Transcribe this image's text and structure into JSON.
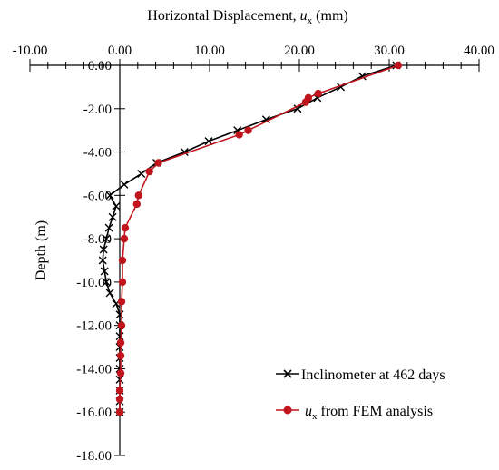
{
  "chart_data": {
    "type": "line",
    "title": "",
    "xlabel_prefix": "Horizontal Displacement, ",
    "xlabel_var": "u",
    "xlabel_sub": "x",
    "xlabel_unit": " (mm)",
    "ylabel": "Depth (m)",
    "xlim": [
      -10,
      40
    ],
    "ylim": [
      -18,
      0
    ],
    "x_ticks": [
      -10,
      0,
      10,
      20,
      30,
      40
    ],
    "x_tick_labels": [
      "-10.00",
      "0.00",
      "10.00",
      "20.00",
      "30.00",
      "40.00"
    ],
    "y_ticks": [
      0,
      -2,
      -4,
      -6,
      -8,
      -10,
      -12,
      -14,
      -16,
      -18
    ],
    "y_tick_labels": [
      "0.00",
      "-2.00",
      "-4.00",
      "-6.00",
      "-8.00",
      "-10.00",
      "-12.00",
      "-14.00",
      "-16.00",
      "-18.00"
    ],
    "x_axis_position": "top",
    "legend_position": "bottom-right",
    "grid": false,
    "series": [
      {
        "name": "Inclinometer at 462 days",
        "color": "#000000",
        "marker": "x",
        "points": [
          [
            30.8,
            0.0
          ],
          [
            27.0,
            -0.5
          ],
          [
            24.6,
            -1.0
          ],
          [
            22.0,
            -1.5
          ],
          [
            19.8,
            -2.0
          ],
          [
            16.3,
            -2.5
          ],
          [
            13.1,
            -3.0
          ],
          [
            9.9,
            -3.5
          ],
          [
            7.2,
            -4.0
          ],
          [
            4.1,
            -4.5
          ],
          [
            2.4,
            -5.0
          ],
          [
            0.5,
            -5.5
          ],
          [
            -1.1,
            -6.0
          ],
          [
            -0.4,
            -6.5
          ],
          [
            -0.8,
            -7.0
          ],
          [
            -1.2,
            -7.5
          ],
          [
            -1.5,
            -8.0
          ],
          [
            -1.8,
            -8.5
          ],
          [
            -1.9,
            -9.0
          ],
          [
            -1.7,
            -9.5
          ],
          [
            -1.5,
            -10.0
          ],
          [
            -1.1,
            -10.5
          ],
          [
            -0.4,
            -11.0
          ],
          [
            0.0,
            -11.5
          ],
          [
            0.0,
            -12.0
          ],
          [
            0.0,
            -12.5
          ],
          [
            0.0,
            -13.0
          ],
          [
            0.0,
            -13.5
          ],
          [
            0.0,
            -14.0
          ],
          [
            0.0,
            -14.5
          ],
          [
            0.0,
            -15.0
          ],
          [
            0.0,
            -15.5
          ],
          [
            0.0,
            -16.0
          ]
        ]
      },
      {
        "name_var": "u",
        "name_sub": "x",
        "name_rest": " from FEM analysis",
        "color": "#c0151d",
        "marker": "circle",
        "points": [
          [
            31.0,
            0.0
          ],
          [
            22.1,
            -1.3
          ],
          [
            21.0,
            -1.5
          ],
          [
            20.7,
            -1.7
          ],
          [
            14.3,
            -3.0
          ],
          [
            13.3,
            -3.2
          ],
          [
            4.3,
            -4.5
          ],
          [
            3.3,
            -4.9
          ],
          [
            2.1,
            -6.0
          ],
          [
            1.9,
            -6.4
          ],
          [
            0.6,
            -7.5
          ],
          [
            0.5,
            -8.0
          ],
          [
            0.3,
            -9.0
          ],
          [
            0.3,
            -10.0
          ],
          [
            0.2,
            -10.9
          ],
          [
            0.2,
            -12.0
          ],
          [
            0.1,
            -12.8
          ],
          [
            0.1,
            -13.4
          ],
          [
            0.1,
            -14.2
          ],
          [
            0.0,
            -15.0
          ],
          [
            0.0,
            -15.4
          ],
          [
            0.0,
            -16.0
          ]
        ]
      }
    ]
  }
}
